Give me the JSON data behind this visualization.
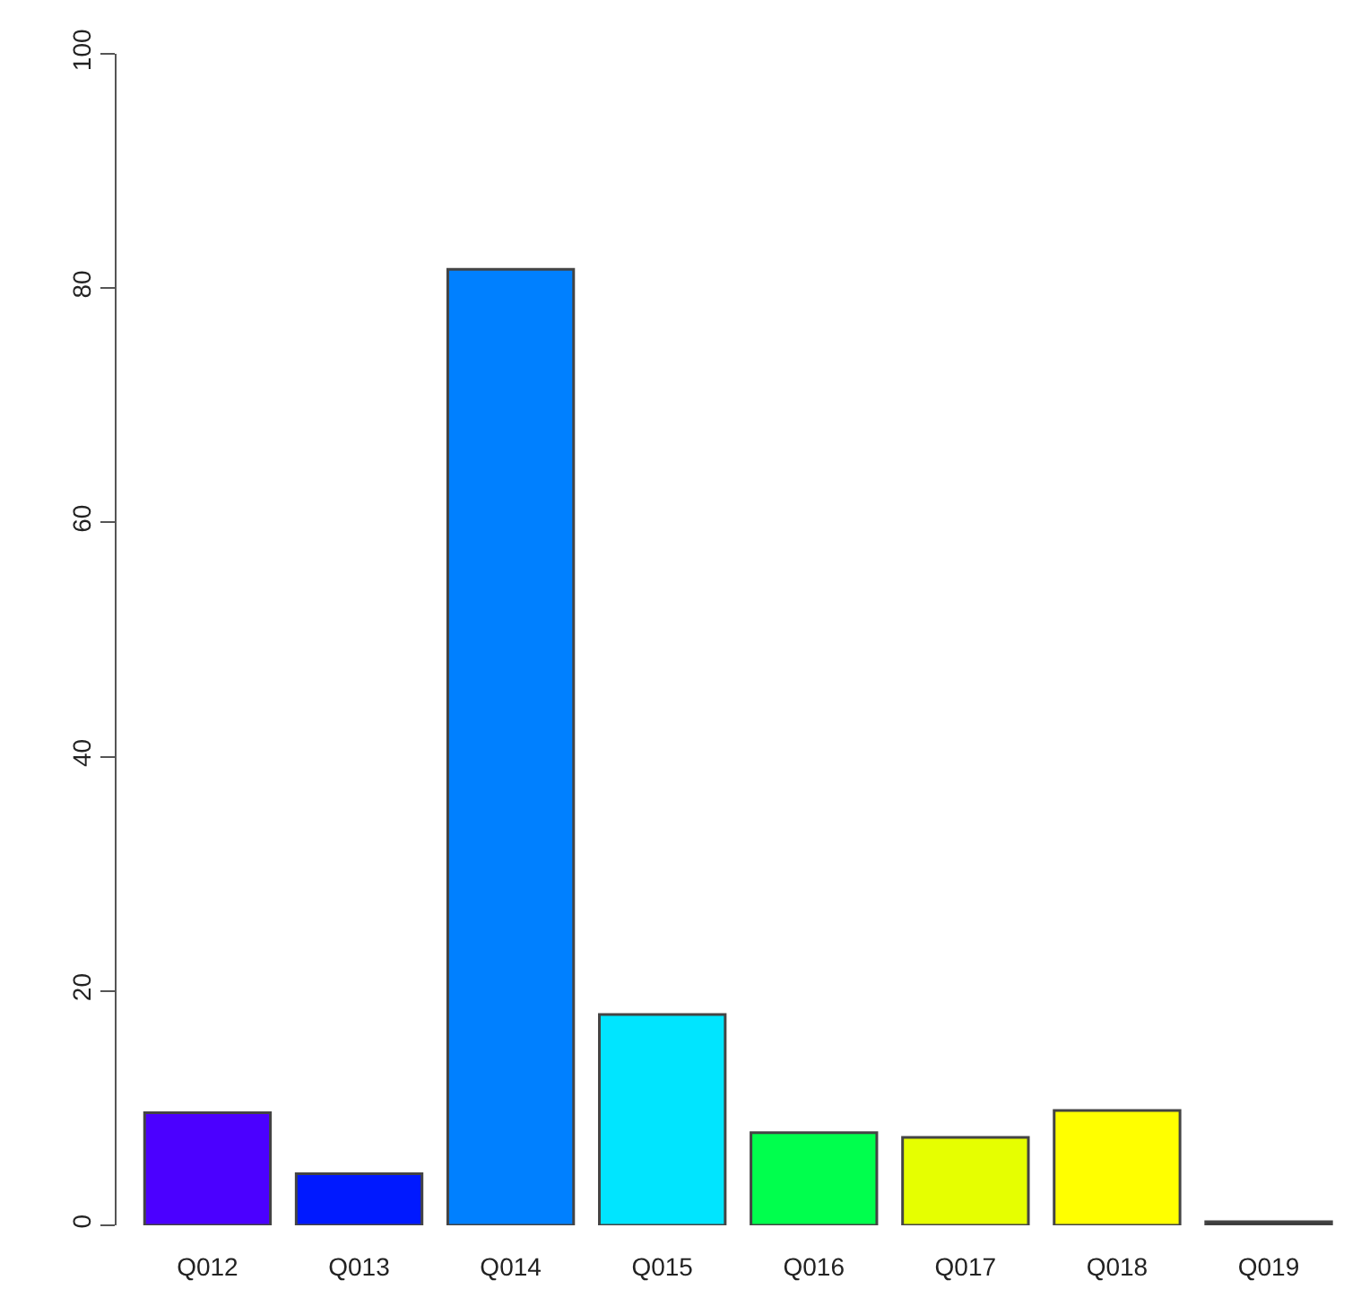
{
  "chart_data": {
    "type": "bar",
    "categories": [
      "Q012",
      "Q013",
      "Q014",
      "Q015",
      "Q016",
      "Q017",
      "Q018",
      "Q019"
    ],
    "values": [
      9.6,
      4.4,
      81.6,
      18.0,
      7.9,
      7.5,
      9.8,
      0.3
    ],
    "colors": [
      "#4b00ff",
      "#0019ff",
      "#0080ff",
      "#00e5ff",
      "#00ff4d",
      "#e6ff00",
      "#ffff00",
      "#333333"
    ],
    "ylim": [
      0,
      100
    ],
    "yticks": [
      0,
      20,
      40,
      60,
      80,
      100
    ]
  }
}
